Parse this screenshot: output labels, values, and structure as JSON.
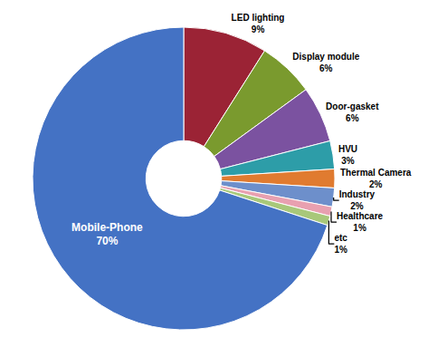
{
  "chart_data": {
    "type": "pie",
    "categories": [
      "LED lighting",
      "Display module",
      "Door-gasket",
      "HVU",
      "Thermal Camera",
      "Industry",
      "Healthcare",
      "etc",
      "Mobile-Phone"
    ],
    "values": [
      9,
      6,
      6,
      3,
      2,
      2,
      1,
      1,
      70
    ],
    "value_labels": [
      "9%",
      "6%",
      "6%",
      "3%",
      "2%",
      "2%",
      "1%",
      "1%",
      "70%"
    ],
    "colors": [
      "#9b2335",
      "#7a9a2e",
      "#7b52a0",
      "#2d9da8",
      "#e07b30",
      "#6d8fcb",
      "#e8a0b0",
      "#a8c87a",
      "#4472c4"
    ],
    "data_labels": true
  }
}
